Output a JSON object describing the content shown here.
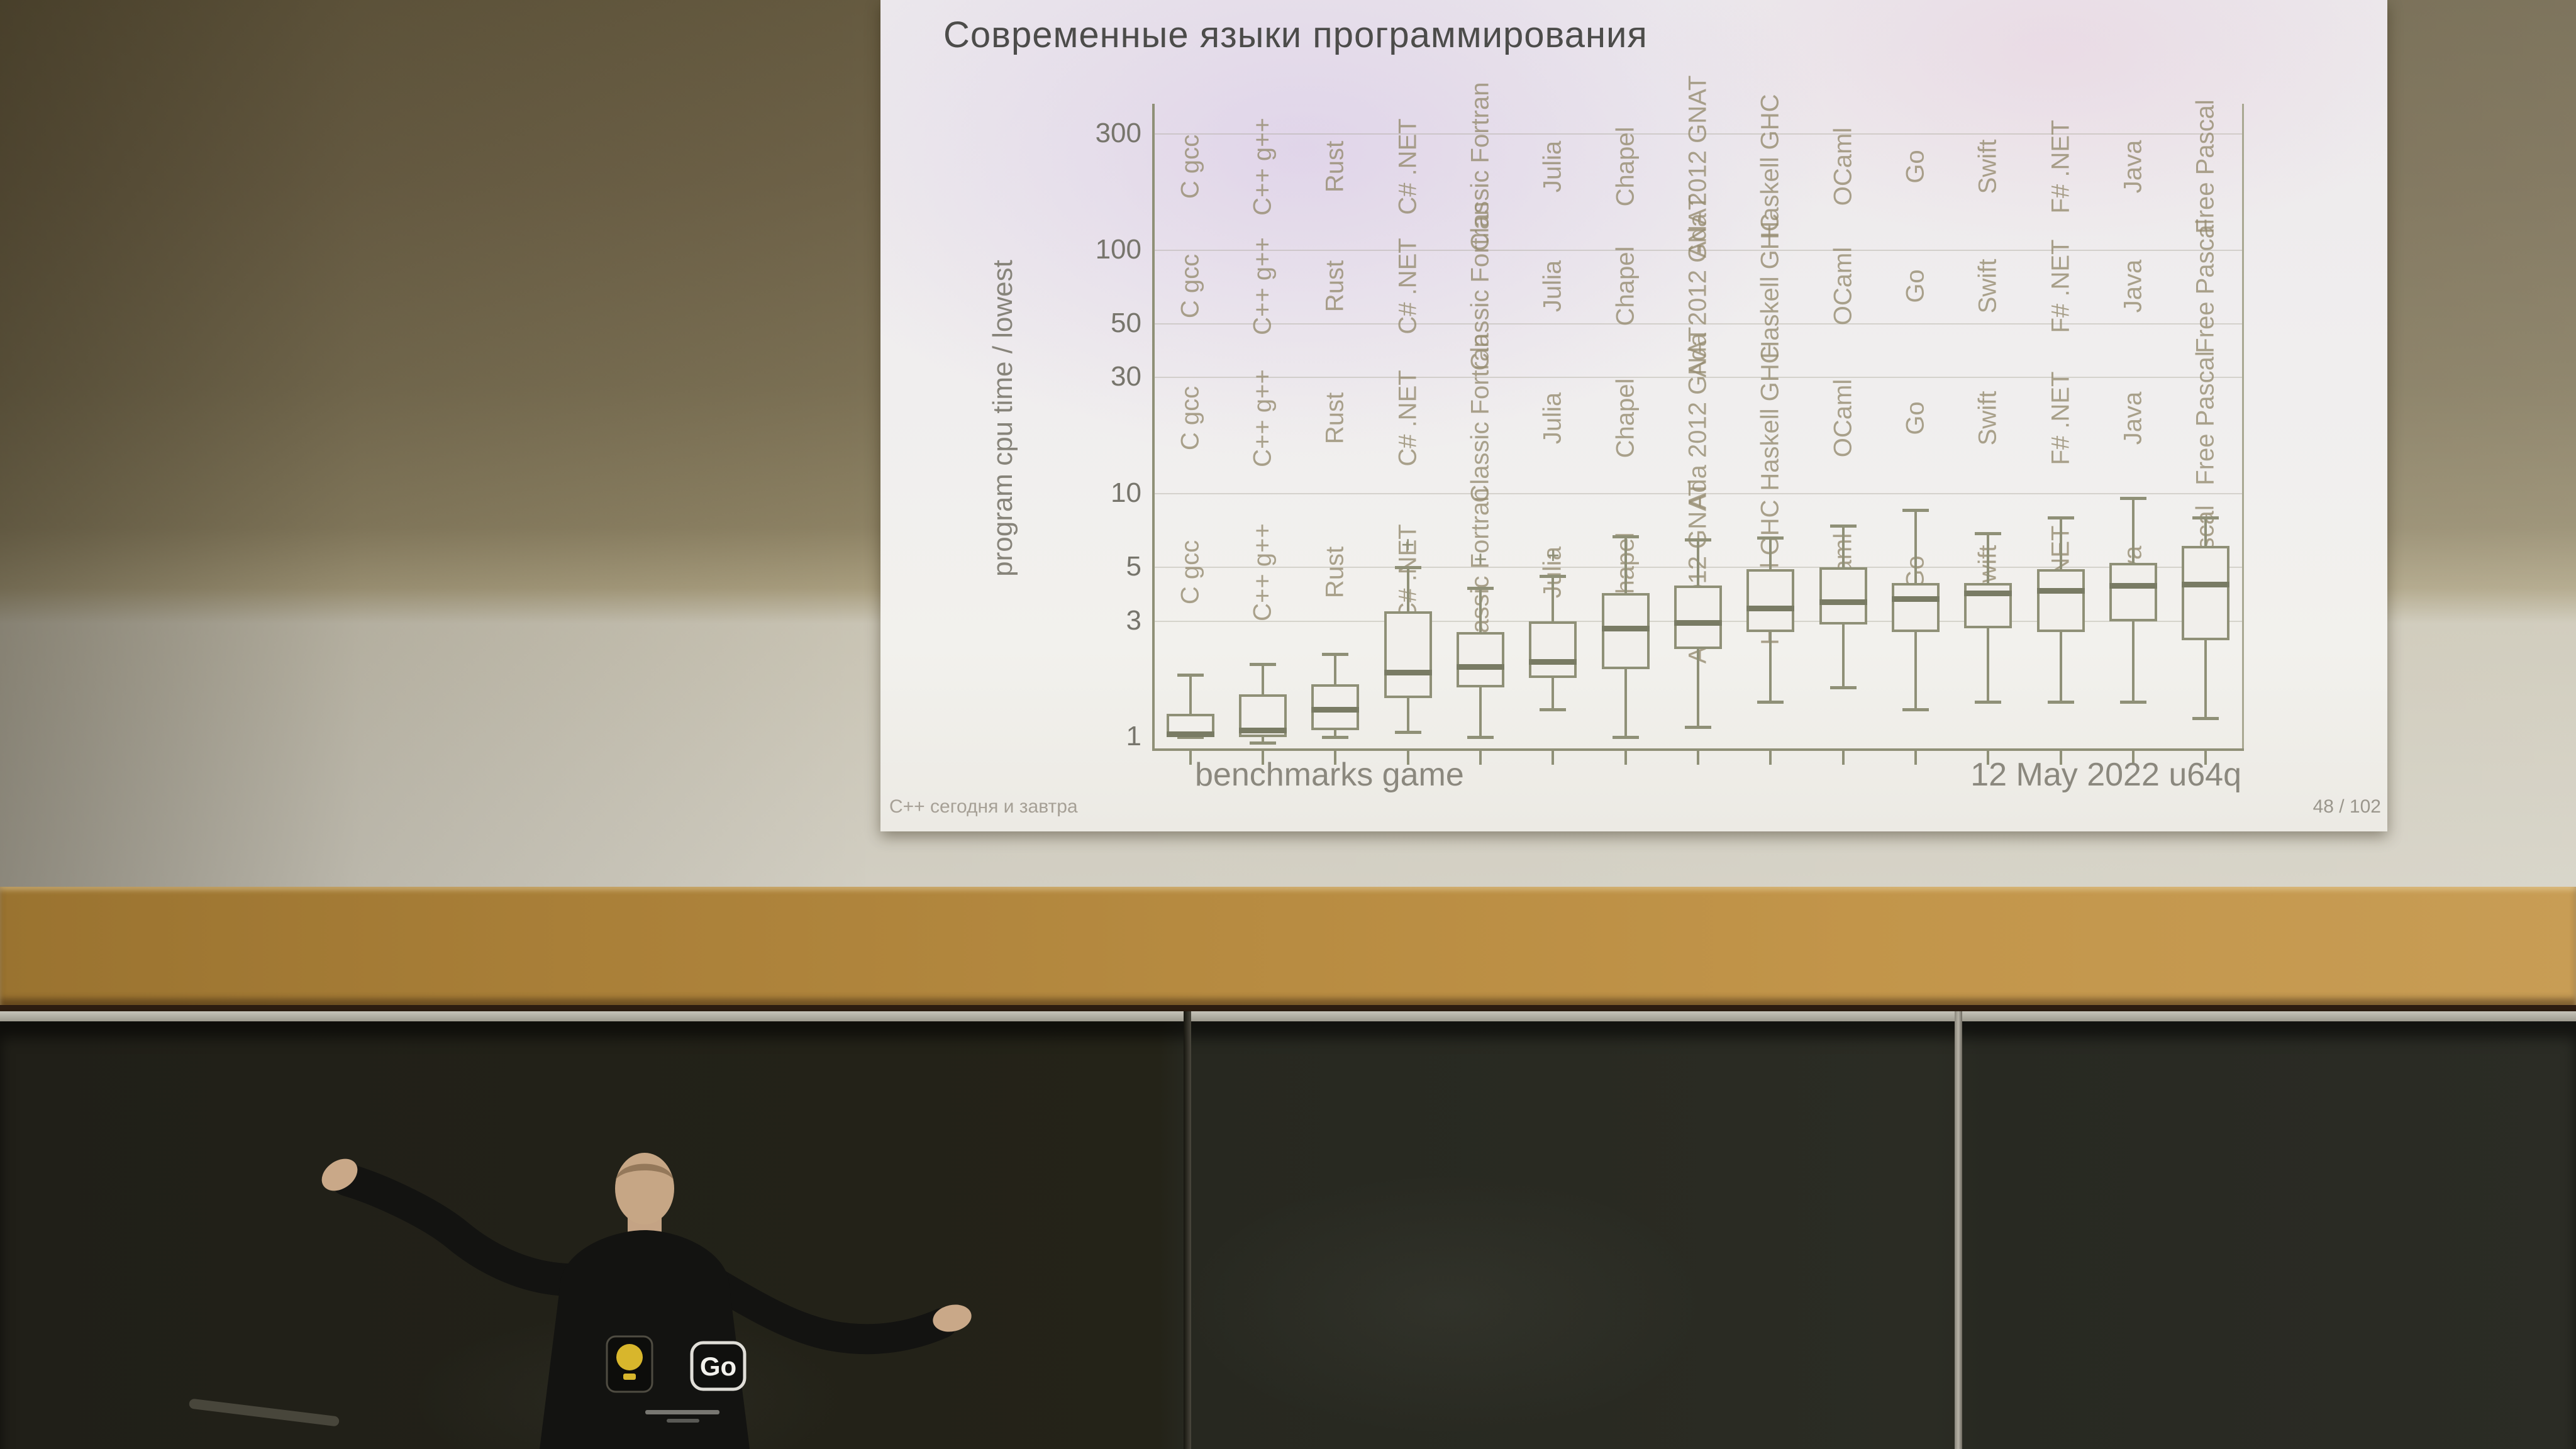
{
  "slide": {
    "title": "Современные языки программирования",
    "y_axis_title": "program cpu time / lowest",
    "footer_left": "benchmarks game",
    "footer_right": "12 May 2022 u64q",
    "credit": "C++ сегодня и завтра",
    "page_number": "48 / 102"
  },
  "person": {
    "badge_text": "Go"
  },
  "chart_data": {
    "type": "boxplot",
    "title": "Современные языки программирования",
    "ylabel": "program cpu time / lowest",
    "y_scale": "log",
    "ylim": [
      0.9,
      400
    ],
    "y_ticks": [
      300,
      100,
      50,
      30,
      10,
      5,
      3,
      1
    ],
    "grid": true,
    "label_repeats": 4,
    "label_row_centers": [
      100,
      290,
      500,
      745
    ],
    "categories": [
      "C gcc",
      "C++ g++",
      "Rust",
      "C# .NET",
      "Classic Fortran",
      "Julia",
      "Chapel",
      "Ada 2012 GNAT",
      "Haskell GHC",
      "OCaml",
      "Go",
      "Swift",
      "F# .NET",
      "Java",
      "Free Pascal"
    ],
    "series": [
      {
        "name": "C gcc",
        "whisker_low": 1.0,
        "q1": 1.0,
        "median": 1.03,
        "q3": 1.25,
        "whisker_high": 1.8,
        "outliers": []
      },
      {
        "name": "C++ g++",
        "whisker_low": 0.95,
        "q1": 1.0,
        "median": 1.07,
        "q3": 1.5,
        "whisker_high": 2.0,
        "outliers": []
      },
      {
        "name": "Rust",
        "whisker_low": 1.0,
        "q1": 1.07,
        "median": 1.3,
        "q3": 1.65,
        "whisker_high": 2.2,
        "outliers": []
      },
      {
        "name": "C# .NET",
        "whisker_low": 1.05,
        "q1": 1.45,
        "median": 1.85,
        "q3": 3.3,
        "whisker_high": 5.0,
        "outliers": [
          6.2
        ]
      },
      {
        "name": "Classic Fortran",
        "whisker_low": 1.0,
        "q1": 1.6,
        "median": 1.95,
        "q3": 2.7,
        "whisker_high": 4.1,
        "outliers": [
          5.4
        ]
      },
      {
        "name": "Julia",
        "whisker_low": 1.3,
        "q1": 1.75,
        "median": 2.05,
        "q3": 3.0,
        "whisker_high": 4.6,
        "outliers": [
          5.6
        ]
      },
      {
        "name": "Chapel",
        "whisker_low": 1.0,
        "q1": 1.9,
        "median": 2.8,
        "q3": 3.9,
        "whisker_high": 6.7,
        "outliers": []
      },
      {
        "name": "Ada 2012 GNAT",
        "whisker_low": 1.1,
        "q1": 2.3,
        "median": 2.95,
        "q3": 4.2,
        "whisker_high": 6.5,
        "outliers": []
      },
      {
        "name": "Haskell GHC",
        "whisker_low": 1.4,
        "q1": 2.7,
        "median": 3.4,
        "q3": 4.9,
        "whisker_high": 6.6,
        "outliers": []
      },
      {
        "name": "OCaml",
        "whisker_low": 1.6,
        "q1": 2.9,
        "median": 3.6,
        "q3": 5.0,
        "whisker_high": 7.4,
        "outliers": []
      },
      {
        "name": "Go",
        "whisker_low": 1.3,
        "q1": 2.7,
        "median": 3.7,
        "q3": 4.3,
        "whisker_high": 8.6,
        "outliers": []
      },
      {
        "name": "Swift",
        "whisker_low": 1.4,
        "q1": 2.8,
        "median": 3.9,
        "q3": 4.3,
        "whisker_high": 6.9,
        "outliers": []
      },
      {
        "name": "F# .NET",
        "whisker_low": 1.4,
        "q1": 2.7,
        "median": 4.0,
        "q3": 4.9,
        "whisker_high": 8.0,
        "outliers": []
      },
      {
        "name": "Java",
        "whisker_low": 1.4,
        "q1": 3.0,
        "median": 4.2,
        "q3": 5.2,
        "whisker_high": 9.6,
        "outliers": []
      },
      {
        "name": "Free Pascal",
        "whisker_low": 1.2,
        "q1": 2.5,
        "median": 4.25,
        "q3": 6.1,
        "whisker_high": 8.0,
        "outliers": []
      }
    ],
    "footer_left": "benchmarks game",
    "footer_right": "12 May 2022 u64q"
  },
  "colors": {
    "wall": "#7b7054",
    "beam_wood": "#b78b41",
    "board": "#26271f",
    "slide_bg": "#f0eeee",
    "slide_tint_lavender": "#cdb6e4",
    "box_stroke": "#8f9077",
    "median": "#797b64",
    "title_text": "#4c4c4a",
    "axis_text": "#77756c",
    "label_text": "#968c70",
    "badge_yellow": "#d8b62c"
  }
}
